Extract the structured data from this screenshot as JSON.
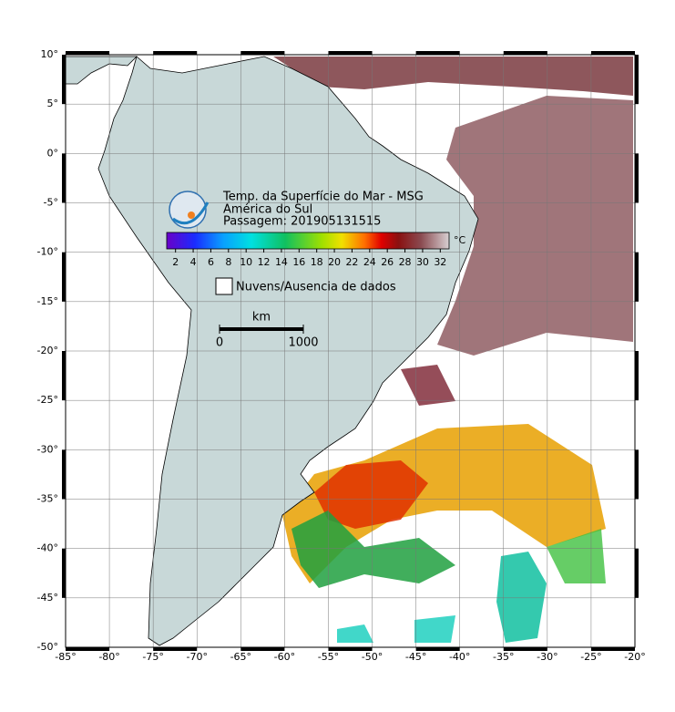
{
  "map": {
    "xlim": [
      -85,
      -20
    ],
    "ylim": [
      -50,
      10
    ],
    "grid": true,
    "xticks": [
      {
        "value": -85,
        "label": "-85°"
      },
      {
        "value": -80,
        "label": "-80°"
      },
      {
        "value": -75,
        "label": "-75°"
      },
      {
        "value": -70,
        "label": "-70°"
      },
      {
        "value": -65,
        "label": "-65°"
      },
      {
        "value": -60,
        "label": "-60°"
      },
      {
        "value": -55,
        "label": "-55°"
      },
      {
        "value": -50,
        "label": "-50°"
      },
      {
        "value": -45,
        "label": "-45°"
      },
      {
        "value": -40,
        "label": "-40°"
      },
      {
        "value": -35,
        "label": "-35°"
      },
      {
        "value": -30,
        "label": "-30°"
      },
      {
        "value": -25,
        "label": "-25°"
      },
      {
        "value": -20,
        "label": "-20°"
      }
    ],
    "yticks": [
      {
        "value": 10,
        "label": "10°"
      },
      {
        "value": 5,
        "label": "5°"
      },
      {
        "value": 0,
        "label": "0°"
      },
      {
        "value": -5,
        "label": "-5°"
      },
      {
        "value": -10,
        "label": "-10°"
      },
      {
        "value": -15,
        "label": "-15°"
      },
      {
        "value": -20,
        "label": "-20°"
      },
      {
        "value": -25,
        "label": "-25°"
      },
      {
        "value": -30,
        "label": "-30°"
      },
      {
        "value": -35,
        "label": "-35°"
      },
      {
        "value": -40,
        "label": "-40°"
      },
      {
        "value": -45,
        "label": "-45°"
      },
      {
        "value": -50,
        "label": "-50°"
      }
    ]
  },
  "legend": {
    "title": "Temp. da Superfície do Mar - MSG",
    "region": "América do Sul",
    "pass": "Passagem: 201905131515",
    "colorbar": {
      "clim": [
        1,
        33
      ],
      "ticks": [
        2,
        4,
        6,
        8,
        10,
        12,
        14,
        16,
        18,
        20,
        22,
        24,
        26,
        28,
        30,
        32
      ],
      "unit": "°C"
    },
    "missing_label": "Nuvens/Ausencia de dados",
    "scale_bar": {
      "unit": "km",
      "ticks": [
        0,
        1000
      ]
    }
  }
}
